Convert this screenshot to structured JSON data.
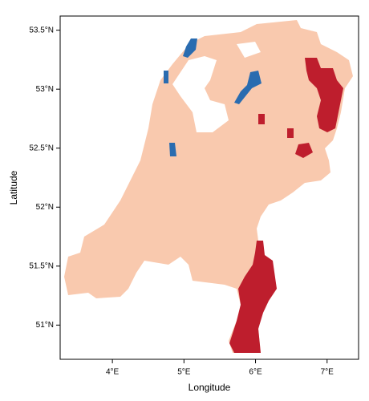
{
  "chart_data": {
    "type": "map",
    "x_label": "Longitude",
    "y_label": "Latitude",
    "xlim": [
      3.27,
      7.44
    ],
    "ylim": [
      50.71,
      53.62
    ],
    "xticks": [
      {
        "value": 4,
        "label": "4°E"
      },
      {
        "value": 5,
        "label": "5°E"
      },
      {
        "value": 6,
        "label": "6°E"
      },
      {
        "value": 7,
        "label": "7°E"
      }
    ],
    "yticks": [
      {
        "value": 51,
        "label": "51°N"
      },
      {
        "value": 51.5,
        "label": "51.5°N"
      },
      {
        "value": 52,
        "label": "52°N"
      },
      {
        "value": 52.5,
        "label": "52.5°N"
      },
      {
        "value": 53,
        "label": "53°N"
      },
      {
        "value": 53.5,
        "label": "53.5°N"
      }
    ]
  }
}
